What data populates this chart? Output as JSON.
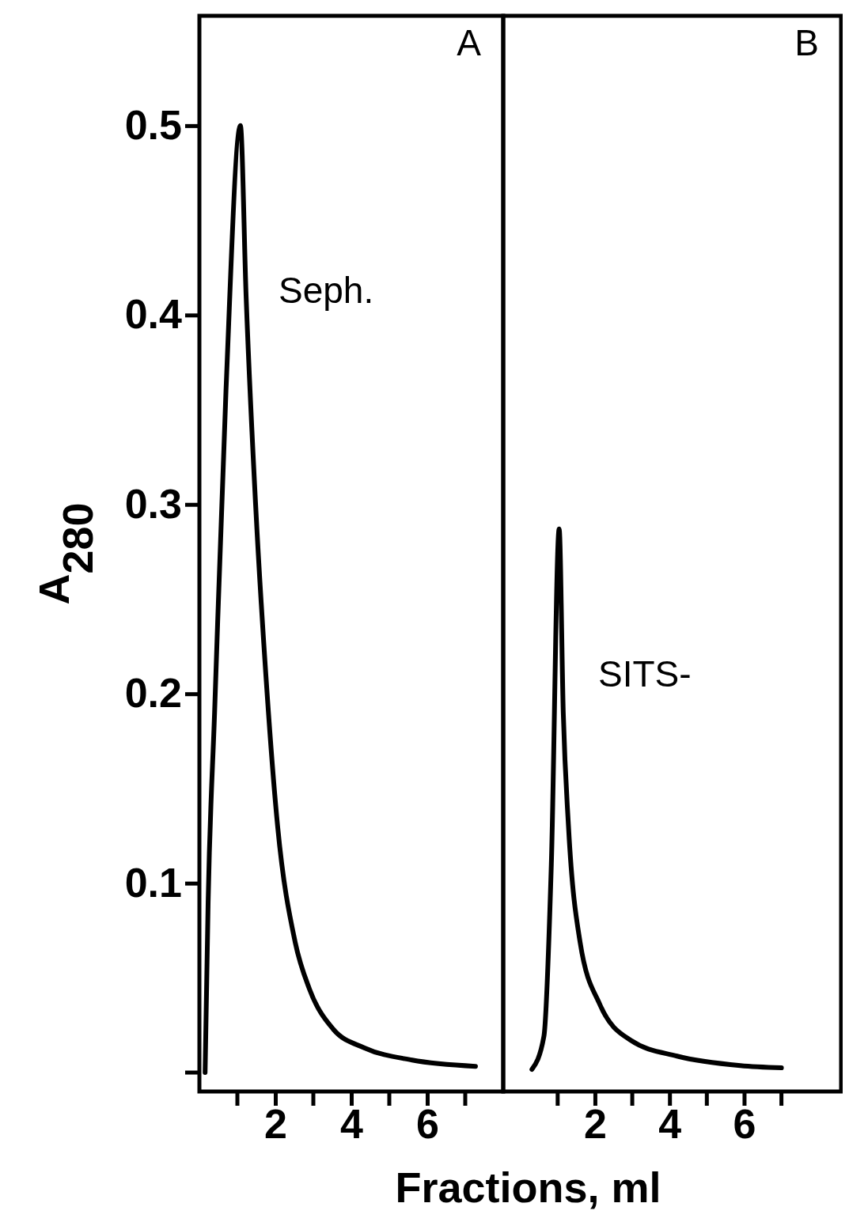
{
  "chart_data": [
    {
      "type": "line",
      "xlabel": "Fractions, ml",
      "ylabel": "A$_{280}$",
      "annotations": [
        "A",
        "Seph."
      ],
      "grid": false,
      "marker": "none",
      "line_style": "solid",
      "xlim": [
        0,
        8
      ],
      "xticks": [
        2,
        4,
        6
      ],
      "ylim": [
        -0.01,
        0.558
      ],
      "yticks": [
        0.1,
        0.2,
        0.3,
        0.4,
        0.5
      ],
      "series": [
        {
          "color": "#000000",
          "x": [
            0.15,
            0.23,
            0.4,
            0.7,
            1.08,
            1.23,
            1.48,
            1.75,
            2.06,
            2.52,
            2.9,
            3.52,
            4.35,
            5.6,
            7.27
          ],
          "values": [
            0,
            0.09,
            0.19,
            0.36,
            0.5,
            0.41,
            0.3,
            0.21,
            0.13,
            0.069,
            0.044,
            0.023,
            0.013,
            0.0066,
            0.0033
          ]
        }
      ]
    },
    {
      "type": "line",
      "annotations": [
        "B",
        "SITS-"
      ],
      "grid": false,
      "marker": "none",
      "line_style": "solid",
      "tick_labels": "x",
      "xlim": [
        -0.46,
        8.6
      ],
      "xticks": [
        2,
        4,
        6
      ],
      "ylim": [
        -0.01,
        0.558
      ],
      "series": [
        {
          "color": "#000000",
          "x": [
            0.31,
            0.63,
            0.83,
            1.04,
            1.15,
            1.29,
            1.6,
            2.13,
            2.96,
            4.2,
            5.9,
            7.0
          ],
          "values": [
            0.0017,
            0.019,
            0.11,
            0.287,
            0.19,
            0.13,
            0.069,
            0.036,
            0.017,
            0.0087,
            0.0037,
            0.0025
          ]
        }
      ]
    }
  ]
}
